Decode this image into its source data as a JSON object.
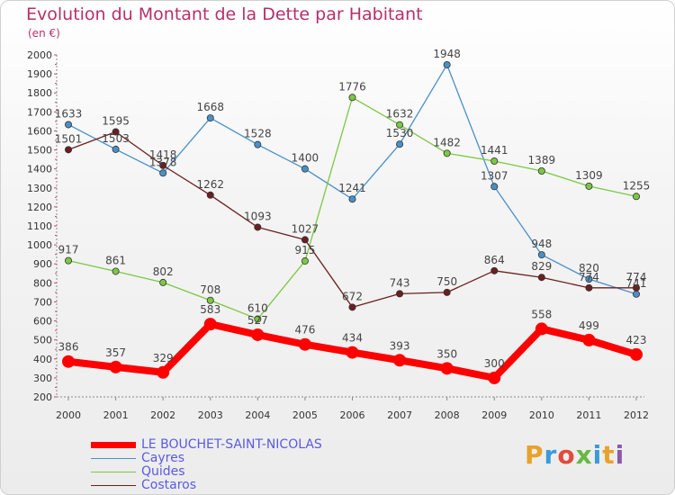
{
  "header": {
    "title": "Evolution du Montant de la Dette par Habitant",
    "subtitle": "(en €)"
  },
  "logo": {
    "text": "Proxiti",
    "colors": [
      "#e8a22b",
      "#3a9ad9",
      "#e04b3b",
      "#67b844",
      "#3a9ad9",
      "#e8a22b",
      "#8b5aa8"
    ]
  },
  "chart_data": {
    "type": "line",
    "title": "Evolution du Montant de la Dette par Habitant",
    "subtitle": "(en €)",
    "xlabel": "",
    "ylabel": "",
    "categories": [
      "2000",
      "2001",
      "2002",
      "2003",
      "2004",
      "2005",
      "2006",
      "2007",
      "2008",
      "2009",
      "2010",
      "2011",
      "2012"
    ],
    "ylim": [
      200,
      2000
    ],
    "yticks": [
      200,
      300,
      400,
      500,
      600,
      700,
      800,
      900,
      1000,
      1100,
      1200,
      1300,
      1400,
      1500,
      1600,
      1700,
      1800,
      1900,
      2000
    ],
    "grid": false,
    "legend_position": "bottom-left",
    "series": [
      {
        "name": "LE BOUCHET-SAINT-NICOLAS",
        "color": "#ff0000",
        "emphasis": true,
        "values": [
          386,
          357,
          329,
          583,
          527,
          476,
          434,
          393,
          350,
          300,
          558,
          499,
          423
        ]
      },
      {
        "name": "Cayres",
        "color": "#4a90c8",
        "values": [
          1633,
          1503,
          1378,
          1668,
          1528,
          1400,
          1241,
          1530,
          1948,
          1307,
          948,
          820,
          741
        ]
      },
      {
        "name": "Quides",
        "color": "#7cc843",
        "values": [
          917,
          861,
          802,
          708,
          610,
          915,
          1776,
          1632,
          1482,
          1441,
          1389,
          1309,
          1255
        ]
      },
      {
        "name": "Costaros",
        "color": "#6b1f1f",
        "values": [
          1501,
          1595,
          1418,
          1262,
          1093,
          1027,
          672,
          743,
          750,
          864,
          829,
          774,
          774
        ]
      }
    ],
    "data_labels": [
      [
        "386",
        "357",
        "329",
        "583",
        "527",
        "476",
        "434",
        "393",
        "350",
        "300",
        "558",
        "499",
        "423"
      ],
      [
        "1633",
        "1503",
        "1378",
        "1668",
        "1528",
        "1400",
        "1241",
        "1530",
        "1948",
        "1307",
        "948",
        "820",
        "741"
      ],
      [
        "917",
        "861",
        "802",
        "708",
        "610",
        "915",
        "1776",
        "1632",
        "1482",
        "1441",
        "1389",
        "1309",
        "1255"
      ],
      [
        "1501",
        "1595",
        "1418",
        "1262",
        "1093",
        "1027",
        "672",
        "743",
        "750",
        "864",
        "829",
        "774",
        "774"
      ]
    ]
  }
}
